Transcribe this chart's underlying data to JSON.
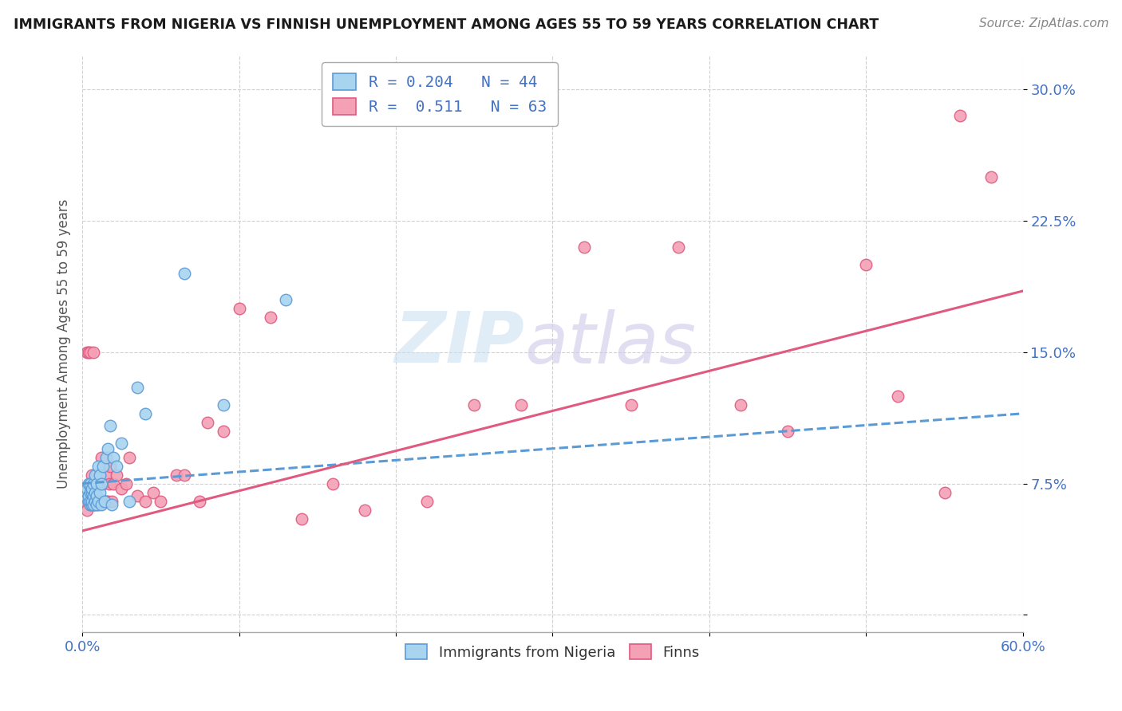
{
  "title": "IMMIGRANTS FROM NIGERIA VS FINNISH UNEMPLOYMENT AMONG AGES 55 TO 59 YEARS CORRELATION CHART",
  "source": "Source: ZipAtlas.com",
  "ylabel": "Unemployment Among Ages 55 to 59 years",
  "xlim": [
    0.0,
    0.6
  ],
  "ylim": [
    -0.01,
    0.32
  ],
  "x_ticks": [
    0.0,
    0.1,
    0.2,
    0.3,
    0.4,
    0.5,
    0.6
  ],
  "x_tick_labels": [
    "0.0%",
    "",
    "",
    "",
    "",
    "",
    "60.0%"
  ],
  "y_ticks": [
    0.0,
    0.075,
    0.15,
    0.225,
    0.3
  ],
  "y_tick_labels": [
    "",
    "7.5%",
    "15.0%",
    "22.5%",
    "30.0%"
  ],
  "legend_entries": [
    {
      "label": "R = 0.204   N = 44",
      "color": "#a8d4f0"
    },
    {
      "label": "R =  0.511   N = 63",
      "color": "#f4a0b5"
    }
  ],
  "blue_scatter_x": [
    0.002,
    0.003,
    0.003,
    0.004,
    0.004,
    0.004,
    0.005,
    0.005,
    0.005,
    0.005,
    0.006,
    0.006,
    0.006,
    0.006,
    0.007,
    0.007,
    0.007,
    0.008,
    0.008,
    0.008,
    0.009,
    0.009,
    0.009,
    0.01,
    0.01,
    0.011,
    0.011,
    0.012,
    0.012,
    0.013,
    0.014,
    0.015,
    0.016,
    0.018,
    0.019,
    0.02,
    0.022,
    0.025,
    0.03,
    0.035,
    0.04,
    0.065,
    0.09,
    0.13
  ],
  "blue_scatter_y": [
    0.068,
    0.07,
    0.072,
    0.065,
    0.068,
    0.075,
    0.063,
    0.065,
    0.07,
    0.075,
    0.063,
    0.065,
    0.07,
    0.072,
    0.063,
    0.068,
    0.075,
    0.065,
    0.07,
    0.08,
    0.063,
    0.068,
    0.075,
    0.065,
    0.085,
    0.07,
    0.08,
    0.063,
    0.075,
    0.085,
    0.065,
    0.09,
    0.095,
    0.108,
    0.063,
    0.09,
    0.085,
    0.098,
    0.065,
    0.13,
    0.115,
    0.195,
    0.12,
    0.18
  ],
  "pink_scatter_x": [
    0.002,
    0.003,
    0.003,
    0.004,
    0.004,
    0.005,
    0.005,
    0.005,
    0.006,
    0.006,
    0.007,
    0.007,
    0.007,
    0.008,
    0.008,
    0.009,
    0.009,
    0.01,
    0.01,
    0.011,
    0.011,
    0.012,
    0.012,
    0.013,
    0.014,
    0.015,
    0.015,
    0.016,
    0.017,
    0.018,
    0.019,
    0.02,
    0.022,
    0.025,
    0.028,
    0.03,
    0.035,
    0.04,
    0.045,
    0.05,
    0.06,
    0.065,
    0.075,
    0.08,
    0.09,
    0.1,
    0.12,
    0.14,
    0.16,
    0.18,
    0.22,
    0.25,
    0.28,
    0.32,
    0.35,
    0.38,
    0.42,
    0.45,
    0.5,
    0.52,
    0.55,
    0.56,
    0.58
  ],
  "pink_scatter_y": [
    0.065,
    0.06,
    0.15,
    0.065,
    0.15,
    0.063,
    0.07,
    0.15,
    0.065,
    0.08,
    0.063,
    0.065,
    0.15,
    0.063,
    0.068,
    0.065,
    0.08,
    0.063,
    0.075,
    0.065,
    0.08,
    0.065,
    0.09,
    0.075,
    0.065,
    0.065,
    0.08,
    0.065,
    0.075,
    0.085,
    0.065,
    0.075,
    0.08,
    0.072,
    0.075,
    0.09,
    0.068,
    0.065,
    0.07,
    0.065,
    0.08,
    0.08,
    0.065,
    0.11,
    0.105,
    0.175,
    0.17,
    0.055,
    0.075,
    0.06,
    0.065,
    0.12,
    0.12,
    0.21,
    0.12,
    0.21,
    0.12,
    0.105,
    0.2,
    0.125,
    0.07,
    0.285,
    0.25
  ],
  "blue_line_y_start": 0.075,
  "blue_line_y_end": 0.115,
  "pink_line_y_start": 0.048,
  "pink_line_y_end": 0.185,
  "blue_color": "#a8d4f0",
  "pink_color": "#f4a0b5",
  "blue_line_color": "#5b9bd5",
  "pink_line_color": "#e05a80",
  "watermark_zip": "ZIP",
  "watermark_atlas": "atlas",
  "background_color": "#ffffff",
  "grid_color": "#d0d0d0"
}
